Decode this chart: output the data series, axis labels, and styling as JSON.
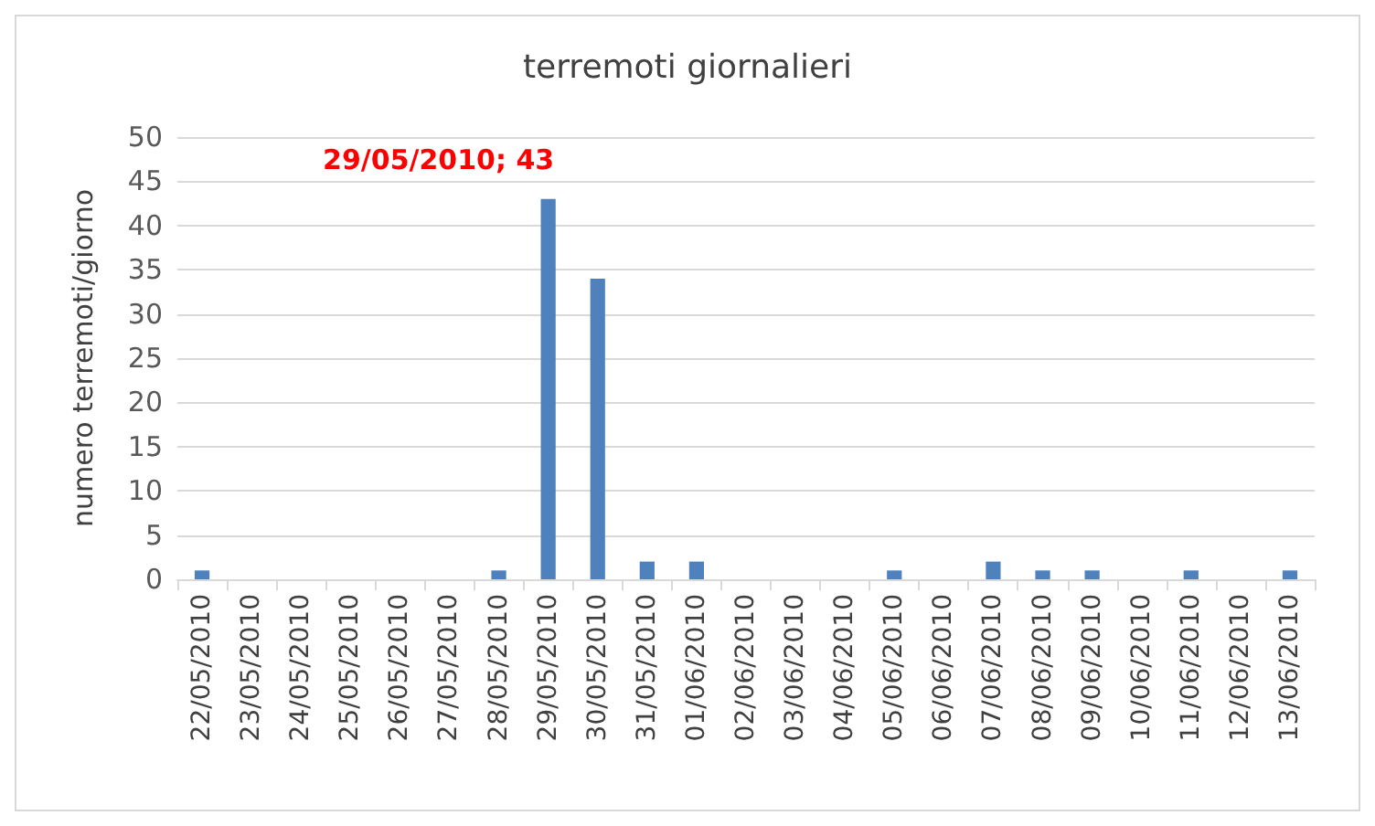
{
  "chart_data": {
    "type": "bar",
    "title": "terremoti giornalieri",
    "ylabel": "numero terremoti/giorno",
    "categories": [
      "22/05/2010",
      "23/05/2010",
      "24/05/2010",
      "25/05/2010",
      "26/05/2010",
      "27/05/2010",
      "28/05/2010",
      "29/05/2010",
      "30/05/2010",
      "31/05/2010",
      "01/06/2010",
      "02/06/2010",
      "03/06/2010",
      "04/06/2010",
      "05/06/2010",
      "06/06/2010",
      "07/06/2010",
      "08/06/2010",
      "09/06/2010",
      "10/06/2010",
      "11/06/2010",
      "12/06/2010",
      "13/06/2010"
    ],
    "values": [
      1,
      0,
      0,
      0,
      0,
      0,
      1,
      43,
      34,
      2,
      2,
      0,
      0,
      0,
      1,
      0,
      2,
      1,
      1,
      0,
      1,
      0,
      1
    ],
    "color": "#4f81bd",
    "ylim": [
      0,
      50
    ],
    "yticks": [
      0,
      5,
      10,
      15,
      20,
      25,
      30,
      35,
      40,
      45,
      50
    ],
    "grid": "y",
    "annotations": [
      {
        "text": "29/05/2010; 43",
        "x": "29/05/2010",
        "y": 43
      }
    ]
  }
}
